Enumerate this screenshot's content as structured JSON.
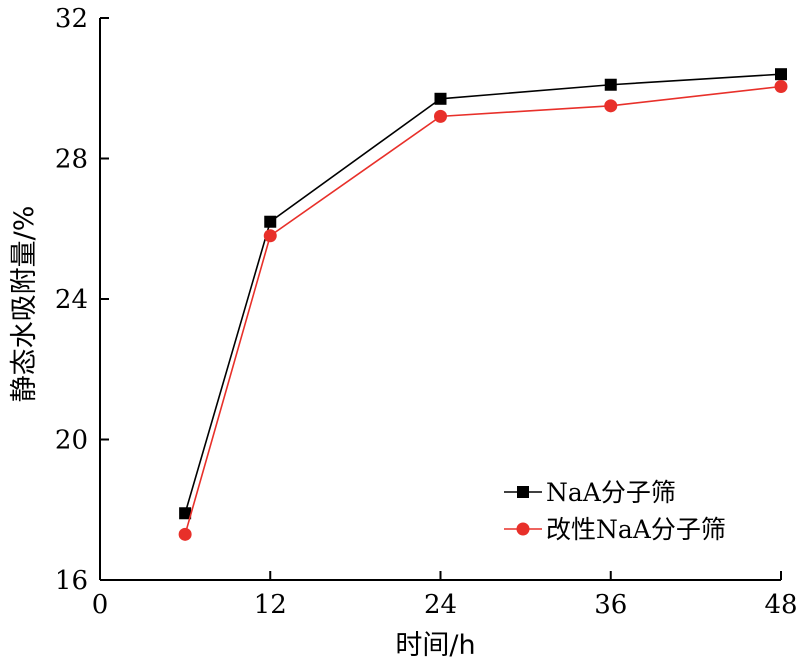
{
  "chart_data": {
    "type": "line",
    "xlabel": "时间/h",
    "ylabel": "静态水吸附量/%",
    "xlim": [
      0,
      48
    ],
    "ylim": [
      16,
      32
    ],
    "xticks": [
      0,
      12,
      24,
      36,
      48
    ],
    "yticks": [
      16,
      20,
      24,
      28,
      32
    ],
    "grid": false,
    "legend_position": "bottom-right",
    "series": [
      {
        "name": "NaA分子筛",
        "marker": "square",
        "color": "#000000",
        "x": [
          6,
          12,
          24,
          36,
          48
        ],
        "y": [
          17.9,
          26.2,
          29.7,
          30.1,
          30.4
        ]
      },
      {
        "name": "改性NaA分子筛",
        "marker": "circle",
        "color": "#e8302a",
        "x": [
          6,
          12,
          24,
          36,
          48
        ],
        "y": [
          17.3,
          25.8,
          29.2,
          29.5,
          30.05
        ]
      }
    ]
  }
}
